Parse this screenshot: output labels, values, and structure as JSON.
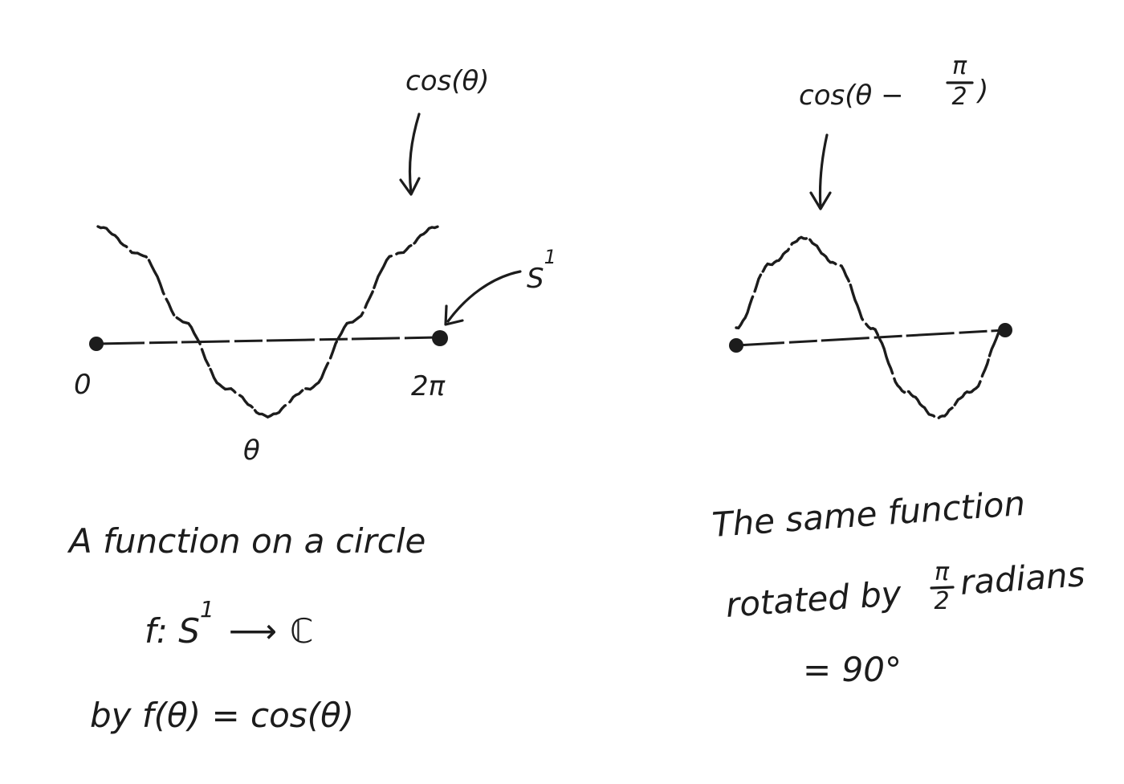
{
  "left_figure": {
    "curve_label": "cos(θ)",
    "circle_label": "S",
    "circle_label_sup": "1",
    "start_tick": "0",
    "end_tick": "2π",
    "theta_label": "θ",
    "caption_line1": "A function on a circle",
    "map_f": "f: S",
    "map_sup": "1",
    "map_arrow": "⟶",
    "map_target": "ℂ",
    "caption_line3": "by   f(θ) = cos(θ)"
  },
  "right_figure": {
    "curve_label_prefix": "cos(θ −",
    "frac_num": "π",
    "frac_den": "2",
    "curve_label_suffix": ")",
    "caption_line1": "The same function",
    "caption_line2_prefix": "rotated by",
    "caption_frac_num": "π",
    "caption_frac_den": "2",
    "caption_line2_suffix": "radians",
    "caption_line3": "= 90°"
  },
  "chart_data": [
    {
      "type": "line",
      "function": "cos(θ)",
      "xlim": [
        0,
        6.2832
      ],
      "ylim": [
        -1,
        1
      ],
      "x_tick_labels": [
        "0",
        "2π"
      ],
      "series": [
        {
          "name": "cos(θ)",
          "x": [
            0,
            0.7854,
            1.5708,
            2.3562,
            3.1416,
            3.927,
            4.7124,
            5.4978,
            6.2832
          ],
          "y": [
            1,
            0.7071,
            0,
            -0.7071,
            -1,
            -0.7071,
            0,
            0.7071,
            1
          ]
        }
      ]
    },
    {
      "type": "line",
      "function": "cos(θ − π/2)",
      "xlim": [
        0,
        6.2832
      ],
      "ylim": [
        -1,
        1
      ],
      "series": [
        {
          "name": "cos(θ − π/2)",
          "x": [
            0,
            0.7854,
            1.5708,
            2.3562,
            3.1416,
            3.927,
            4.7124,
            5.4978,
            6.2832
          ],
          "y": [
            0,
            0.7071,
            1,
            0.7071,
            0,
            -0.7071,
            -1,
            -0.7071,
            0
          ]
        }
      ]
    }
  ]
}
